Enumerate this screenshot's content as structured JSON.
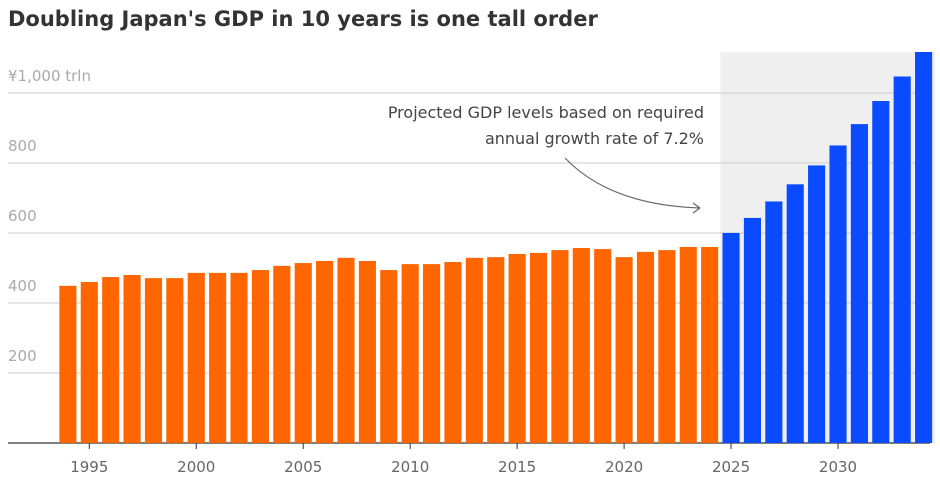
{
  "chart_data": {
    "type": "bar",
    "title": "Doubling Japan's GDP in 10 years is one tall order",
    "annotation": [
      "Projected GDP levels based on required",
      "annual growth rate of 7.2%"
    ],
    "x": [
      1994,
      1995,
      1996,
      1997,
      1998,
      1999,
      2000,
      2001,
      2002,
      2003,
      2004,
      2005,
      2006,
      2007,
      2008,
      2009,
      2010,
      2011,
      2012,
      2013,
      2014,
      2015,
      2016,
      2017,
      2018,
      2019,
      2020,
      2021,
      2022,
      2023,
      2024,
      2025,
      2026,
      2027,
      2028,
      2029,
      2030,
      2031,
      2032,
      2033,
      2034
    ],
    "series": [
      {
        "color": "#ff6600",
        "values": [
          449,
          460,
          474,
          480,
          471,
          471,
          486,
          486,
          486,
          494,
          506,
          514,
          520,
          529,
          520,
          494,
          511,
          511,
          517,
          529,
          531,
          540,
          543,
          551,
          557,
          554,
          531,
          546,
          551,
          560,
          560,
          null,
          null,
          null,
          null,
          null,
          null,
          null,
          null,
          null,
          null
        ]
      },
      {
        "color": "#0a4bff",
        "values": [
          null,
          null,
          null,
          null,
          null,
          null,
          null,
          null,
          null,
          null,
          null,
          null,
          null,
          null,
          null,
          null,
          null,
          null,
          null,
          null,
          null,
          null,
          null,
          null,
          null,
          null,
          null,
          null,
          null,
          null,
          null,
          600,
          643,
          690,
          739,
          793,
          850,
          911,
          977,
          1047,
          1117
        ]
      }
    ],
    "xlim": [
      1991.2,
      2034.3
    ],
    "xticks": [
      1995,
      2000,
      2005,
      2010,
      2015,
      2020,
      2025,
      2030
    ],
    "ylim": [
      0,
      1117
    ],
    "yticks": [
      200,
      400,
      600,
      800,
      {
        "value": 1000,
        "label": "¥1,000 trln"
      }
    ],
    "grid": true
  }
}
